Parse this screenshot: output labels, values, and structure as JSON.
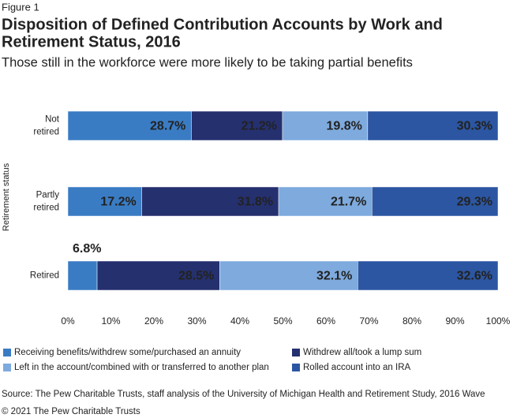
{
  "chart_data": {
    "type": "stacked_bar_horizontal",
    "figure_label": "Figure 1",
    "title": [
      "Disposition of Defined Contribution Accounts by Work and",
      "Retirement Status, 2016"
    ],
    "subtitle": "Those still in the workforce were more likely to be taking partial benefits",
    "y_axis_label": "Retirement status",
    "categories": [
      "Not retired",
      "Partly retired",
      "Retired"
    ],
    "series": [
      {
        "name": "Receiving benefits/withdrew some/purchased an annuity",
        "color": "#3a7cc4",
        "values": [
          28.7,
          17.2,
          6.8
        ],
        "value_labels": [
          "28.7%",
          "17.2%",
          "6.8%"
        ]
      },
      {
        "name": "Withdrew all/took a lump sum",
        "color": "#25306f",
        "values": [
          21.2,
          31.8,
          28.5
        ],
        "value_labels": [
          "21.2%",
          "31.8%",
          "28.5%"
        ]
      },
      {
        "name": "Left in the account/combined with or transferred to another plan",
        "color": "#7eaadd",
        "values": [
          19.8,
          21.7,
          32.1
        ],
        "value_labels": [
          "19.8%",
          "21.7%",
          "32.1%"
        ]
      },
      {
        "name": "Rolled account into an IRA",
        "color": "#2c56a2",
        "values": [
          30.3,
          29.3,
          32.6
        ],
        "value_labels": [
          "30.3%",
          "29.3%",
          "32.6%"
        ]
      }
    ],
    "xlim": [
      0,
      100
    ],
    "xticks": [
      {
        "value": 0,
        "label": "0%"
      },
      {
        "value": 10,
        "label": "10%"
      },
      {
        "value": 20,
        "label": "20%"
      },
      {
        "value": 30,
        "label": "30%"
      },
      {
        "value": 40,
        "label": "40%"
      },
      {
        "value": 50,
        "label": "50%"
      },
      {
        "value": 60,
        "label": "60%"
      },
      {
        "value": 70,
        "label": "70%"
      },
      {
        "value": 80,
        "label": "80%"
      },
      {
        "value": 90,
        "label": "90%"
      },
      {
        "value": 100,
        "label": "100%"
      }
    ],
    "source": "Source: The Pew Charitable Trusts, staff analysis of the University of Michigan Health and Retirement Study, 2016 Wave",
    "copyright": "© 2021 The Pew Charitable Trusts"
  }
}
